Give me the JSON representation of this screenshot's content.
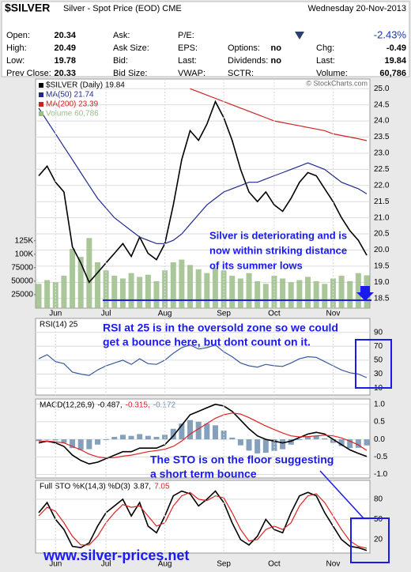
{
  "header": {
    "title": "$SILVER",
    "subtitle": "Silver - Spot Price (EOD) CME",
    "date": "Wednesday 20-Nov-2013",
    "change_pct": "-2.43%",
    "columns": [
      [
        {
          "label": "Open:",
          "value": 20.34
        },
        {
          "label": "High:",
          "value": 20.49
        },
        {
          "label": "Low:",
          "value": 19.78
        },
        {
          "label": "Prev Close:",
          "value": 20.33
        }
      ],
      [
        {
          "label": "Ask:"
        },
        {
          "label": "Ask Size:"
        },
        {
          "label": "Bid:"
        },
        {
          "label": "Bid Size:"
        }
      ],
      [
        {
          "label": "P/E:"
        },
        {
          "label": "EPS:"
        },
        {
          "label": "Last:"
        },
        {
          "label": "VWAP:"
        }
      ],
      [
        {
          "label": "Options:",
          "value": "no"
        },
        {
          "label": "Dividends:",
          "value": "no"
        },
        {
          "label": "SCTR:"
        }
      ],
      [
        {
          "label": "Chg:",
          "value": -0.49
        },
        {
          "label": "Last:",
          "value": 19.84
        },
        {
          "label": "Volume:",
          "value": "60,786"
        }
      ]
    ],
    "credit": "© StockCharts.com"
  },
  "footer": "www.silver-prices.net",
  "chart_data": [
    {
      "type": "line",
      "categories": [
        null,
        null,
        "Jun",
        null,
        null,
        null,
        null,
        null,
        "Jul",
        null,
        null,
        null,
        null,
        null,
        null,
        "Aug",
        null,
        null,
        null,
        null,
        null,
        null,
        "Sep",
        null,
        null,
        null,
        null,
        null,
        "Oct",
        null,
        null,
        null,
        null,
        null,
        null,
        "Nov",
        null,
        null,
        null,
        null
      ],
      "ylim": [
        18.2,
        25.3
      ],
      "yticks": [
        18.5,
        {
          "value": 19,
          "label": "19.0"
        },
        19.5,
        {
          "value": 20,
          "label": "20.0"
        },
        20.5,
        {
          "value": 21,
          "label": "21.0"
        },
        21.5,
        {
          "value": 22,
          "label": "22.0"
        },
        22.5,
        {
          "value": 23,
          "label": "23.0"
        },
        23.5,
        {
          "value": 24,
          "label": "24.0"
        },
        24.5,
        {
          "value": 25,
          "label": "25.0"
        }
      ],
      "y2lim": [
        0,
        425000
      ],
      "y2ticks": [
        25000,
        50000,
        75000,
        {
          "value": 100000,
          "label": "100K"
        },
        {
          "value": 125000,
          "label": "125K"
        }
      ],
      "grid": true,
      "series": [
        {
          "name": "$SILVER (Daily) 19.84",
          "color": "#000000",
          "values": [
            22.3,
            22.6,
            22.1,
            21.8,
            20.1,
            19.6,
            19.0,
            19.3,
            19.6,
            19.9,
            20.2,
            19.8,
            20.4,
            19.9,
            19.7,
            20.2,
            21.4,
            22.8,
            23.7,
            23.4,
            23.9,
            24.6,
            24.1,
            23.4,
            22.5,
            21.8,
            21.5,
            21.8,
            21.4,
            21.2,
            21.6,
            22.1,
            22.4,
            22.3,
            21.9,
            21.5,
            21.0,
            20.6,
            20.3,
            19.84
          ]
        },
        {
          "name": "MA(50) 21.74",
          "color": "#1f2a8c",
          "values": [
            24.4,
            24.0,
            23.6,
            23.2,
            22.8,
            22.4,
            22.0,
            21.6,
            21.3,
            21.0,
            20.8,
            20.6,
            20.4,
            20.3,
            20.2,
            20.2,
            20.3,
            20.5,
            20.8,
            21.1,
            21.4,
            21.6,
            21.8,
            21.9,
            22.0,
            22.1,
            22.1,
            22.2,
            22.3,
            22.4,
            22.5,
            22.6,
            22.7,
            22.6,
            22.5,
            22.3,
            22.1,
            22.0,
            21.9,
            21.74
          ]
        },
        {
          "name": "MA(200) 23.39",
          "color": "#cc2222",
          "values": [
            null,
            null,
            null,
            null,
            null,
            null,
            null,
            null,
            null,
            null,
            null,
            null,
            null,
            null,
            null,
            null,
            null,
            null,
            25.0,
            24.9,
            24.8,
            24.7,
            24.6,
            24.5,
            24.4,
            24.3,
            24.2,
            24.1,
            24.0,
            23.95,
            23.9,
            23.85,
            23.8,
            23.75,
            23.7,
            23.6,
            23.55,
            23.5,
            23.45,
            23.39
          ]
        },
        {
          "name": "Volume 60,786",
          "color": "#9bbd88",
          "type": "bar",
          "axis": "y2",
          "values": [
            45000,
            52000,
            48000,
            60000,
            110000,
            95000,
            130000,
            85000,
            70000,
            60000,
            55000,
            65000,
            58000,
            62000,
            50000,
            70000,
            85000,
            90000,
            80000,
            72000,
            65000,
            75000,
            70000,
            60000,
            55000,
            65000,
            50000,
            45000,
            60000,
            55000,
            48000,
            52000,
            58000,
            50000,
            45000,
            55000,
            60000,
            50000,
            65000,
            60786
          ]
        }
      ],
      "annotations": [
        "Silver is deteriorating and is",
        "now within striking distance",
        "of its summer lows"
      ]
    },
    {
      "type": "line",
      "legend_title": "RSI(14) 25",
      "ylim": [
        0,
        110
      ],
      "yticks": [
        10,
        30,
        50,
        70,
        90
      ],
      "grid": true,
      "series": [
        {
          "color": "#3a5a9a",
          "values": [
            52,
            58,
            48,
            45,
            33,
            30,
            28,
            36,
            42,
            46,
            50,
            44,
            52,
            45,
            44,
            50,
            60,
            68,
            72,
            66,
            68,
            72,
            62,
            55,
            46,
            42,
            40,
            44,
            42,
            41,
            46,
            52,
            55,
            54,
            48,
            42,
            36,
            32,
            30,
            25
          ]
        }
      ],
      "annotations": [
        "RSI at 25 is in the oversold zone so we could",
        "get a bounce here, but dont count on it."
      ]
    },
    {
      "type": "line",
      "legend_title": "MACD(12,26,9)",
      "ylim": [
        -1.1,
        1.15
      ],
      "yticks": [
        {
          "value": -1,
          "label": "-1.0"
        },
        -0.5,
        {
          "value": 0,
          "label": "0.0"
        },
        0.5,
        {
          "value": 1,
          "label": "1.0"
        }
      ],
      "grid": true,
      "series": [
        {
          "name": "-0.487,",
          "color": "#000000",
          "values": [
            -0.1,
            -0.05,
            -0.1,
            -0.2,
            -0.45,
            -0.6,
            -0.7,
            -0.65,
            -0.55,
            -0.45,
            -0.35,
            -0.35,
            -0.25,
            -0.25,
            -0.25,
            -0.15,
            0.1,
            0.4,
            0.7,
            0.8,
            0.9,
            1.0,
            0.95,
            0.8,
            0.55,
            0.3,
            0.1,
            0.0,
            -0.05,
            -0.1,
            -0.05,
            0.05,
            0.15,
            0.2,
            0.15,
            0.0,
            -0.15,
            -0.3,
            -0.4,
            -0.487
          ]
        },
        {
          "name": "-0.315,",
          "color": "#dd2222",
          "values": [
            -0.05,
            -0.05,
            -0.07,
            -0.1,
            -0.2,
            -0.3,
            -0.42,
            -0.5,
            -0.53,
            -0.52,
            -0.48,
            -0.45,
            -0.4,
            -0.35,
            -0.32,
            -0.28,
            -0.2,
            -0.05,
            0.15,
            0.3,
            0.45,
            0.6,
            0.7,
            0.75,
            0.72,
            0.62,
            0.5,
            0.38,
            0.28,
            0.18,
            0.1,
            0.07,
            0.08,
            0.1,
            0.12,
            0.1,
            0.04,
            -0.05,
            -0.16,
            -0.315
          ]
        },
        {
          "name": "-0.172",
          "color": "#6f8fb0",
          "type": "bar",
          "values": [
            -0.05,
            0.0,
            -0.03,
            -0.1,
            -0.25,
            -0.3,
            -0.28,
            -0.15,
            -0.02,
            0.07,
            0.13,
            0.1,
            0.15,
            0.1,
            0.07,
            0.13,
            0.3,
            0.45,
            0.55,
            0.5,
            0.45,
            0.4,
            0.25,
            0.05,
            -0.17,
            -0.32,
            -0.4,
            -0.38,
            -0.33,
            -0.28,
            -0.15,
            -0.02,
            0.07,
            0.1,
            0.03,
            -0.1,
            -0.19,
            -0.25,
            -0.24,
            -0.172
          ]
        }
      ],
      "annotations": [
        "The STO is on the floor suggesting",
        "a short term bounce"
      ]
    },
    {
      "type": "line",
      "legend_title": "Full STO %K(14,3) %D(3)",
      "ylim": [
        0,
        108
      ],
      "yticks": [
        20,
        50,
        80
      ],
      "grid": true,
      "series": [
        {
          "name": "3.87,",
          "color": "#000000",
          "values": [
            60,
            75,
            50,
            35,
            10,
            8,
            15,
            40,
            60,
            70,
            80,
            55,
            75,
            40,
            30,
            55,
            85,
            92,
            88,
            70,
            80,
            92,
            75,
            45,
            20,
            12,
            25,
            50,
            35,
            30,
            60,
            85,
            90,
            85,
            60,
            40,
            20,
            10,
            8,
            3.87
          ]
        },
        {
          "name": "7.05",
          "color": "#dd2222",
          "values": [
            55,
            68,
            62,
            45,
            25,
            12,
            12,
            25,
            45,
            60,
            72,
            68,
            70,
            55,
            40,
            45,
            70,
            85,
            90,
            80,
            78,
            85,
            82,
            60,
            35,
            18,
            20,
            35,
            40,
            35,
            45,
            70,
            85,
            88,
            75,
            55,
            35,
            18,
            10,
            7.05
          ]
        }
      ]
    }
  ]
}
